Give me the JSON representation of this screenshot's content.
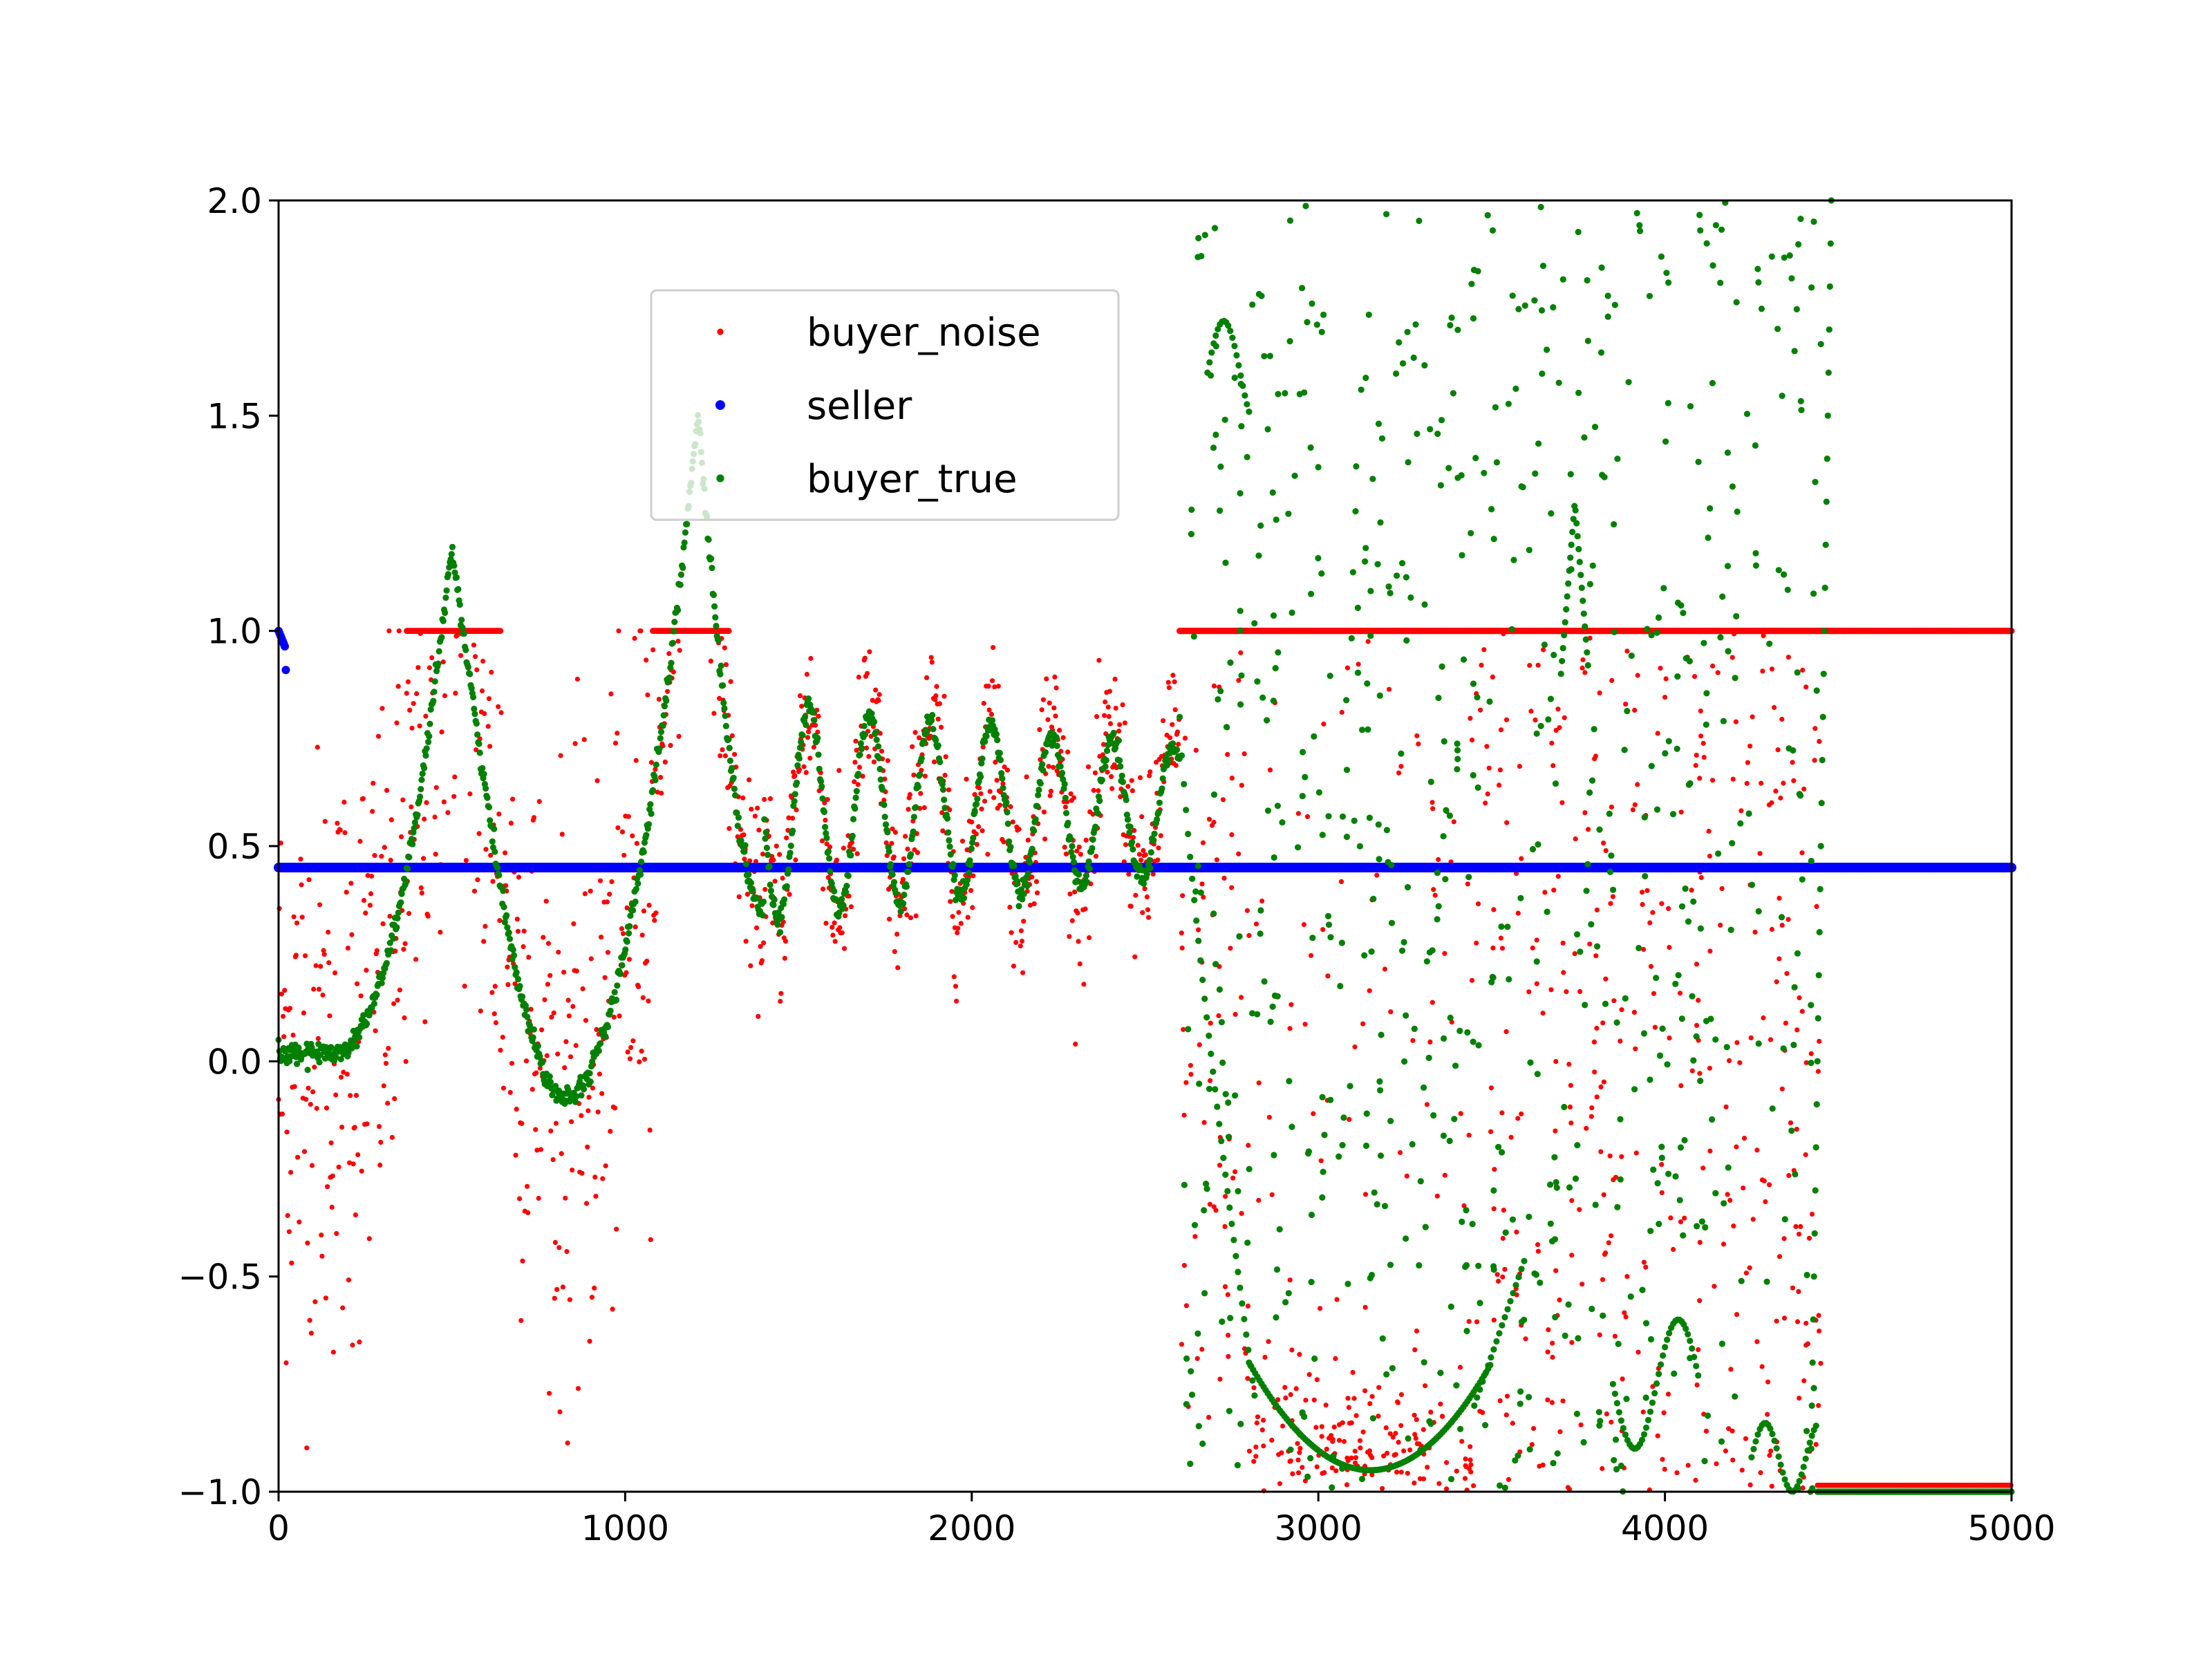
{
  "chart_data": {
    "type": "scatter",
    "xlim": [
      0,
      5000
    ],
    "ylim": [
      -1.0,
      2.0
    ],
    "x_ticks": [
      0,
      1000,
      2000,
      3000,
      4000,
      5000
    ],
    "x_tick_labels": [
      "0",
      "1000",
      "2000",
      "3000",
      "4000",
      "5000"
    ],
    "y_ticks": [
      -1.0,
      -0.5,
      0.0,
      0.5,
      1.0,
      1.5,
      2.0
    ],
    "y_tick_labels": [
      "−1.0",
      "−0.5",
      "0.0",
      "0.5",
      "1.0",
      "1.5",
      "2.0"
    ],
    "grid": false,
    "legend_position": "upper-center",
    "series": [
      {
        "name": "buyer_noise",
        "color": "#ff0000",
        "marker_size": "small",
        "description_points": "x from 0 to 5000, y clipped to [-1, 1]; noisy version of buyer_true",
        "x": [
          0,
          100,
          200,
          300,
          400,
          500,
          600,
          700,
          800,
          900,
          1000,
          1100,
          1200,
          1300,
          1400,
          1500,
          1600,
          1700,
          1800,
          1900,
          2000,
          2100,
          2200,
          2300,
          2400,
          2500,
          2600,
          2700,
          2800,
          2900,
          3000,
          3100,
          3200,
          3300,
          3400,
          3500,
          3600,
          3700,
          3800,
          3900,
          4000,
          4100,
          4200,
          4300,
          4400,
          4500,
          4600,
          4700,
          4800,
          4900,
          5000
        ],
        "y": [
          0.3,
          -0.2,
          0.4,
          0.6,
          0.9,
          1.0,
          0.8,
          0.2,
          -0.1,
          -0.2,
          0.2,
          0.8,
          1.0,
          0.7,
          0.3,
          0.8,
          0.6,
          0.3,
          0.6,
          0.7,
          0.7,
          0.5,
          0.7,
          0.5,
          0.7,
          0.6,
          1.0,
          1.0,
          1.0,
          1.0,
          1.0,
          1.0,
          1.0,
          1.0,
          1.0,
          1.0,
          1.0,
          1.0,
          1.0,
          1.0,
          1.0,
          1.0,
          1.0,
          1.0,
          1.0,
          -1.0,
          -1.0,
          -1.0,
          -1.0,
          -1.0,
          -1.0
        ]
      },
      {
        "name": "seller",
        "color": "#0000ff",
        "marker_size": "medium",
        "x": [
          0,
          10,
          20,
          30,
          500,
          1000,
          1500,
          2000,
          2500,
          3000,
          3500,
          4000,
          4500,
          5000
        ],
        "y": [
          1.0,
          0.98,
          0.96,
          0.45,
          0.45,
          0.45,
          0.45,
          0.45,
          0.45,
          0.45,
          0.45,
          0.45,
          0.45,
          0.45
        ]
      },
      {
        "name": "buyer_true",
        "color": "#008000",
        "marker_size": "medium",
        "x": [
          0,
          100,
          200,
          300,
          400,
          500,
          600,
          700,
          800,
          900,
          1000,
          1100,
          1200,
          1250,
          1300,
          1400,
          1500,
          1600,
          1700,
          1800,
          1900,
          2000,
          2100,
          2200,
          2300,
          2400,
          2500,
          2600,
          2700,
          2800,
          2900,
          3000,
          3100,
          3200,
          3300,
          3400,
          3500,
          3600,
          3700,
          3750,
          3800,
          3900,
          4000,
          4100,
          4200,
          4300,
          4400,
          4450,
          4500,
          4600,
          4700,
          4800,
          4900,
          5000
        ],
        "y": [
          0.02,
          0.01,
          0.05,
          0.3,
          0.8,
          1.2,
          0.6,
          0.1,
          -0.08,
          -0.05,
          0.3,
          0.8,
          1.5,
          1.0,
          0.6,
          0.35,
          0.85,
          0.5,
          0.3,
          0.65,
          0.45,
          0.7,
          0.45,
          0.72,
          0.48,
          0.7,
          0.45,
          1.0,
          1.7,
          1.4,
          1.8,
          1.7,
          1.9,
          1.9,
          1.6,
          1.4,
          1.9,
          1.9,
          1.3,
          0.95,
          1.9,
          1.8,
          1.9,
          1.85,
          1.9,
          1.5,
          1.3,
          2.0,
          -1.0,
          -1.0,
          -1.0,
          -1.0,
          -1.0,
          -1.0
        ]
      }
    ]
  }
}
